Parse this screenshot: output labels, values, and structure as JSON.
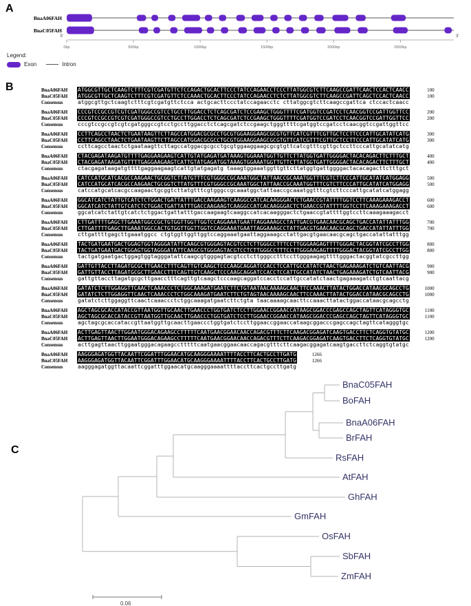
{
  "figure": {
    "panel_a_label": "A",
    "panel_b_label": "B",
    "panel_c_label": "C"
  },
  "gene_structure": {
    "genes": [
      {
        "name": "BnaA06FAH",
        "exons": [
          [
            0,
            190
          ],
          [
            525,
            595
          ],
          [
            635,
            685
          ],
          [
            760,
            815
          ],
          [
            865,
            1000
          ],
          [
            1035,
            1090
          ],
          [
            1140,
            1195
          ],
          [
            1270,
            1335
          ],
          [
            1385,
            1475
          ],
          [
            1525,
            1580
          ],
          [
            1630,
            1685
          ],
          [
            1740,
            1800
          ],
          [
            1855,
            1925
          ],
          [
            1990,
            2110
          ],
          [
            2165,
            2240
          ],
          [
            2430,
            2540
          ]
        ]
      },
      {
        "name": "BnaC05FAH",
        "exons": [
          [
            0,
            205
          ],
          [
            540,
            610
          ],
          [
            650,
            700
          ],
          [
            775,
            830
          ],
          [
            880,
            1015
          ],
          [
            1050,
            1105
          ],
          [
            1155,
            1210
          ],
          [
            1285,
            1350
          ],
          [
            1400,
            1490
          ],
          [
            1540,
            1595
          ],
          [
            1645,
            1700
          ],
          [
            1755,
            1815
          ],
          [
            1870,
            1940
          ],
          [
            2005,
            2125
          ],
          [
            2180,
            2255
          ],
          [
            2445,
            2555
          ],
          [
            2830,
            2885
          ]
        ]
      }
    ],
    "total_bp": 2900,
    "ruler_ticks": [
      {
        "bp": 0,
        "label": "0bp"
      },
      {
        "bp": 500,
        "label": "500bp"
      },
      {
        "bp": 1000,
        "label": "1000bp"
      },
      {
        "bp": 1500,
        "label": "1500bp"
      },
      {
        "bp": 2000,
        "label": "2000bp"
      },
      {
        "bp": 2500,
        "label": "2500bp"
      }
    ],
    "five_prime_label": "5'",
    "three_prime_label": "3'",
    "exon_color": "#6526c9",
    "intron_color": "#555555",
    "legend": {
      "title": "Legend:",
      "exon_label": "Exon",
      "intron_label": "Intron"
    }
  },
  "alignment": {
    "row_labels": [
      "BnaA06FAH",
      "BnaC05FAH",
      "Consensus"
    ],
    "blocks": [
      {
        "num": "100",
        "a": "ATGGCGTTGCTCAAGTCTTTCGTCGATGTTCTCCAGACTGCACTTCCCTATCCAGAACCTCCCTTATGGCGTCTTCAAGCCGATTCAACTCCACTCAACC",
        "c": "ATGGCGTTGCTCAAGTCTTTCGTCGATGTTCTCCAAACTGCACTTCCCTATCCAGAACCTCTCTTATGGCGTCTTCAAGCCGATTCAGCTCCACTCAACC",
        "cons": "atggcgttgctcaagtctttcgtcgatgttctcca actgcacttccctatccagaacctc cttatggcgtcttcaagccgattca ctccactcaacc"
      },
      {
        "num": "200",
        "a": "CCCGTCCGCCGTCGTCGATGGGCCGTCCTGCCTTGGACCTCTCAGCGATCTCCGAAGCTGGGTTTTCGATGGTCCGATCCTCAACGGTCCGATTGGTTCC",
        "c": "CCCGTCCGCCGTCGTCGATGGGCCGTCCTGCCTTGGACCTCTCAGCGATCTCCGAAGCTGGGTTTTCGATGGTCCGATCCTCAACGGTCCGATTGGTTCC",
        "cons": "cccgtccgccgtcgtcgatgggccgtcctgccttggacctctcagcgatctccgaagctgggttttcgatggtccgatcctcaacggtccgattggttcc"
      },
      {
        "num": "300",
        "a": "CCTTCAGCCTAACTCTGAATAAGTTCTTAGCCATGGACGCGCCTGCGTGGAAGGAAGCGCGTGTTCATCGTTTCGTTGCTCCTTCCCATTGCATATCATG",
        "c": "CCTTCAGCCTAACTCTGAATAAGTTCTTAGCCATGGACGCGCCTGCGTGGAAGGAAGCGCGTGTTCATCGTTTCGTTGCTCCTTCCCATTGCATATCATG",
        "cons": "ccttcagcctaactctgaataagttcttagccatggacgcgcctgcgtggaaggaagcgcgtgttcatcgtttcgttgctccttcccattgcatatcatg"
      },
      {
        "num": "400",
        "a": "CTACGAGATAAGATGTTTTGAGGAAGAAGTCATTGTATGAGATGATAAAGTGGAAATGGTTGTTCTTATGGTGATTGGGGACTACACAGACTTCTTTGCT",
        "c": "CTACGAGATAAGATGTTTTGAGGAAGAAGTCATTGTATGAGATGGTAAAGTGGAAATGGTTGTTCTTATGGTGATTGGGGACTACACAGACTTCTTTGCT",
        "cons": "ctacgagataagatgttttgaggaagaagtcattgtatgagatg taaagtggaaatggttgttcttatggtgattggggactacacagacttctttgct"
      },
      {
        "num": "500",
        "a": "CATCCATGCATCACGCCAAGAACTGCGGTCTTATGTTTCGTGGGCCGCAAATGGCTATTAACCGCAAATGGTTTCGTCTTCCCATTGCATATCATGGAGG",
        "c": "CATCCATGCATCACGCCAAGAACTGCGGTCTTATGTTTCGTGGGCCGCAAATGGCTATTAACCGCAAATGGTTTCGTCTTCCCATTGCATATCATGGAGG",
        "cons": "catccatgcatcacgccaagaactgcggtcttatgtttcgtgggccgcaaatggctattaaccgcaaatggtttcgtcttcccattgcatatcatggagg"
      },
      {
        "num": "600",
        "a": "GGCATCATCTATTGTCATCTCTGGACTGATTATTTGACCAAGAAGTCAAGGCCATCACAAGGGACTCTGAACCGTATTTTGGTCCTTCAAAGAAAGACCT",
        "c": "GGCATCATCTATTGTCATCTCTGGACTGATTATTTGACCAAGAAGTCAAGGCCATCACAAGGGACTCTGAACCGTATTTTGGTCCTTCAAAGAAAGACCT",
        "cons": "ggcatcatctattgtcatctctggactgattatttgaccaagaagtcaaggccatcacaagggactctgaaccgtattttggtccttcaaagaaagacct"
      },
      {
        "num": "700",
        "a": "CTTGATTTTGAGCTTGAAATGGCCGCTGTGGTTGGTTGGTCCAGGAAATGAATTAGGAAAGCCTATTGACGTGAACAACGCAGCTGACCATATTATTTGG",
        "c": "CTTGATTTTGAGCTTGAAATGGCCACTGTGGTTGGTTGGTCCAGGAAATGAATTAGGAAAGCCTATTGACGTGAACAACGCAGCTGACCATATTATTTGG",
        "cons": "cttgattttgagcttgaaatggcc ctgtggttggttggtccaggaaatgaattaggaaagcctattgacgtgaacaacgcagctgaccatattatttgg"
      },
      {
        "num": "800",
        "a": "TACTGATGAATGACTGGAGTGGTAGGGATATTCAAGCGTGGGAGTACGTCCTCTTGGGCCTTTCCTTGGGAAGAGTTTTGGGACTACGGTATCGCCTTGG",
        "c": "TACTGATGAATGACTGGAGTGGTAGGGATATTCAAGCGTGGGAGTACGTCCTCTTGGGCCTTTCCTTGGGAAGAGTTTTGGGACTACGGTATCGCCTTGG",
        "cons": "tactgatgaatgactggagtggtagggatattcaagcgtgggagtacgtcctcttgggcctttccttgggaagagttttgggactacggtatcgccttgg"
      },
      {
        "num": "900",
        "a": "GATTGTTACCTTAGATGCGCTTGAACCTTTCAGTTGTCAAGCTCCCAAGCAGGATCCACCTCCATTGCCATATCTAACTGAGAAAGATCTGTCAATTACG",
        "c": "GATTGTTACCTTAGATGCGCTTGAACCTTTCAGTTGTCAAGCTCCCAAGCAGGATCCACCTCCATTGCCATATCTAACTGAGAAAGATCTGTCAATTACG",
        "cons": "gattgttaccttagatgcgcttgaacctttcagttgtcaagctcccaagcaggatccacctccattgccatatctaactgagaaagatctgtcaattacg"
      },
      {
        "num": "1000",
        "a": "GATATCTCTTGGAGGTTCAACTCAAACCCTCTGGCAAAGATGAATCTTCTGTAATAACAAAAGCAACTTCCAAACTTATACTGGACCATAACGCAGCCTG",
        "c": "GATATCTCTTGGAGGTTCAACTCAAACCCTCTGGCAAAGATGAATCTTCTGTAGTAACAAAAGCAACTTCCAAACTTATACTGGACCATAACGCAGCCTG",
        "cons": "gatatctcttggaggttcaactcaaaccctctggcaaagatgaatcttctgta taacaaaagcaacttccaaacttatactggaccataacgcagcctg"
      },
      {
        "num": "1100",
        "a": "AGCTAGCGCACCATACCGTTAATGGTTGCAACTTGAACCCTGGTGATCTCCTTGGAACCGGAACCATAAGCGGACCCGAGCCAGCTAGTTCATAGGGTGC",
        "c": "AGCTAGCGCACCATACCGTTAATGGTTGCAACTTGAACCCTGGTGATCTCCTTGGAACCGGAACCATAAGCGGACCCGAGCCAGCTAGTTCATAGGGTGC",
        "cons": "agctagcgcaccataccgttaatggttgcaacttgaaccctggtgatctccttggaaccggaaccataagcggacccgagccagctagttcatagggtgc"
      },
      {
        "num": "1200",
        "a": "ACTTGAGTTAACTTGGAATGGGACAGAAGCCTTTTTCAATGAACGGAACAACCAGACGTTTCTTCAAGACGGAGATCAAGTGACCTTCTCAGGTGTATGC",
        "c": "ACTTGAGTTAACTTGGAATGGGACAGAAGCCTTTTTCAATGAACGGAACAACCAGACGTTTCTTCAAGACGGAGATCAAGTGACCTTCTCAGGTGTATGC",
        "cons": "acttgagttaacttggaatgggacagaagcctttttcaatgaacggaacaaccagacgtttcttcaagacggagatcaagtgaccttctcaggtgtatgc"
      },
      {
        "num": "1266",
        "a": "AAGGGAGATGGTTACAATTCGGATTTGGAACATGCAAGGGAAAATTTTACCTTCACTGCCTTGATG",
        "c": "AAGGGAGATGGTTACAATTCGGATTTGGAACATGCAAGGGAAAATTTTACCTTCACTGCCTTGATG",
        "cons": "aagggagatggttacaattcggatttggaacatgcaagggaaaattttaccttcactgccttgatg"
      }
    ]
  },
  "tree": {
    "taxa": [
      "BnaC05FAH",
      "BoFAH",
      "BnaA06FAH",
      "BrFAH",
      "RsFAH",
      "AtFAH",
      "GhFAH",
      "GmFAH",
      "OsFAH",
      "SbFAH",
      "ZmFAH"
    ],
    "scale_label": "0.06"
  }
}
